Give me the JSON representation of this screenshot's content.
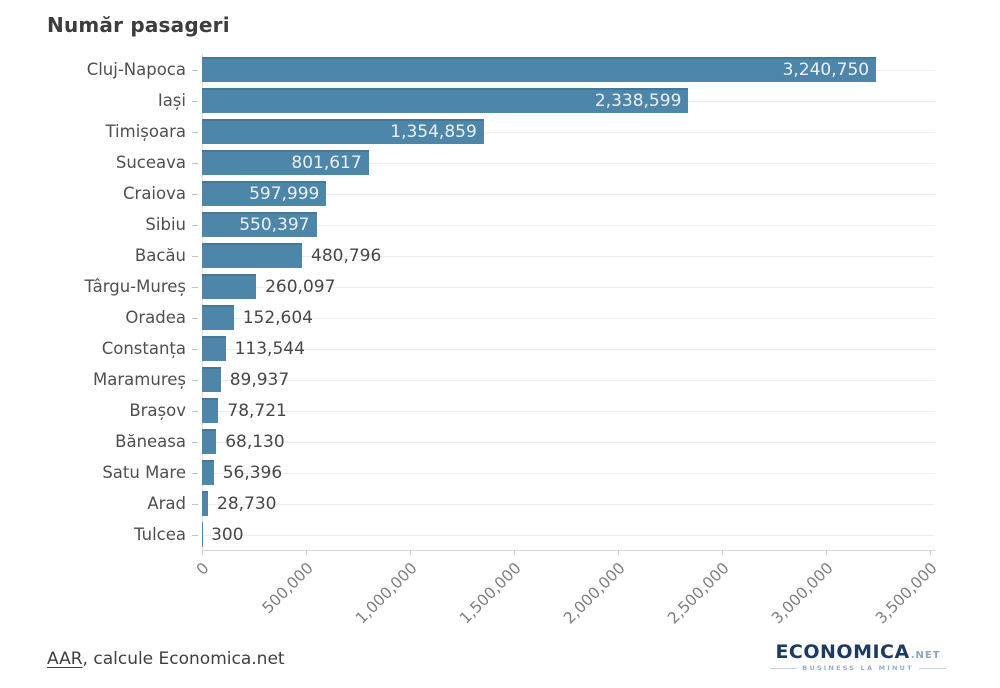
{
  "title": "Număr pasageri",
  "chart_data": {
    "type": "bar",
    "orientation": "horizontal",
    "title": "Număr pasageri",
    "xlabel": "",
    "ylabel": "",
    "xlim": [
      0,
      3500000
    ],
    "grid": "light horizontal line per category; no vertical gridlines",
    "legend": "none",
    "bar_color": "#4d86a8",
    "categories": [
      "Cluj-Napoca",
      "Iași",
      "Timișoara",
      "Suceava",
      "Craiova",
      "Sibiu",
      "Bacău",
      "Târgu-Mureș",
      "Oradea",
      "Constanța",
      "Maramureș",
      "Brașov",
      "Băneasa",
      "Satu Mare",
      "Arad",
      "Tulcea"
    ],
    "values": [
      3240750,
      2338599,
      1354859,
      801617,
      597999,
      550397,
      480796,
      260097,
      152604,
      113544,
      89937,
      78721,
      68130,
      56396,
      28730,
      300
    ],
    "value_labels": [
      "3,240,750",
      "2,338,599",
      "1,354,859",
      "801,617",
      "597,999",
      "550,397",
      "480,796",
      "260,097",
      "152,604",
      "113,544",
      "89,937",
      "78,721",
      "68,130",
      "56,396",
      "28,730",
      "300"
    ],
    "x_tick_labels": [
      "0",
      "500,000",
      "1,000,000",
      "1,500,000",
      "2,000,000",
      "2,500,000",
      "3,000,000",
      "3,500,000"
    ],
    "x_tick_values": [
      0,
      500000,
      1000000,
      1500000,
      2000000,
      2500000,
      3000000,
      3500000
    ]
  },
  "footer": {
    "source_link": "AAR",
    "source_rest": ", calcule Economica.net"
  },
  "logo": {
    "name": "ECONOMICA",
    "tld": ".NET",
    "tagline": "BUSINESS LA MINUT"
  }
}
